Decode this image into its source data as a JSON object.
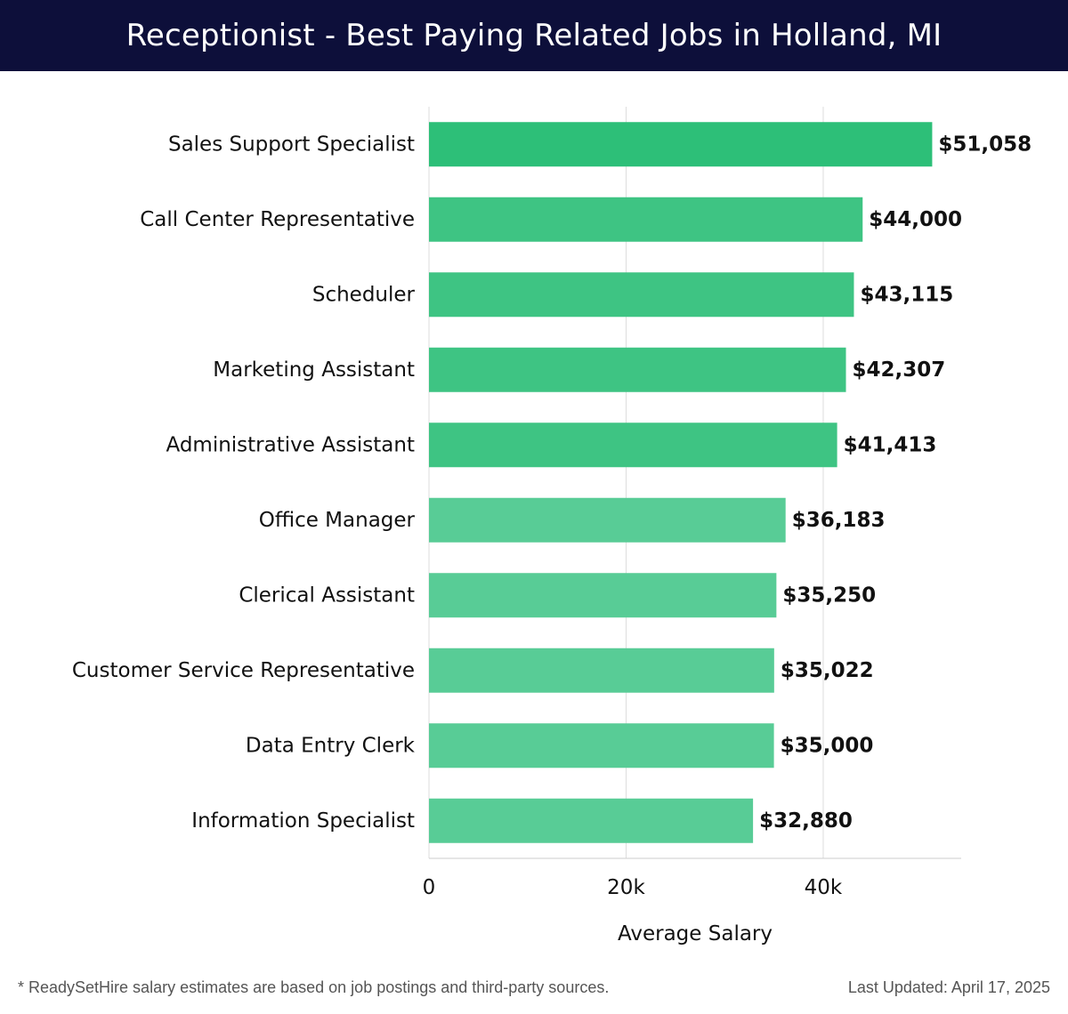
{
  "colors": {
    "header_bg": "#0d0f3a",
    "bar_top": "#2dbf78",
    "bar": "#3ec483",
    "bar_light": "#58cc96",
    "grid": "#dddddd",
    "axis": "#cccccc"
  },
  "footer": {
    "note": "* ReadySetHire salary estimates are based on job postings and third-party sources.",
    "updated": "Last Updated: April 17, 2025"
  },
  "chart_data": {
    "type": "bar",
    "orientation": "horizontal",
    "title": "Receptionist - Best Paying Related Jobs in Holland, MI",
    "xlabel": "Average Salary",
    "ylabel": "",
    "xlim": [
      0,
      54000
    ],
    "xticks": [
      0,
      20000,
      40000
    ],
    "xtick_labels": [
      "0",
      "20k",
      "40k"
    ],
    "grid": true,
    "categories": [
      "Sales Support Specialist",
      "Call Center Representative",
      "Scheduler",
      "Marketing Assistant",
      "Administrative Assistant",
      "Office Manager",
      "Clerical Assistant",
      "Customer Service Representative",
      "Data Entry Clerk",
      "Information Specialist"
    ],
    "values": [
      51058,
      44000,
      43115,
      42307,
      41413,
      36183,
      35250,
      35022,
      35000,
      32880
    ],
    "value_labels": [
      "$51,058",
      "$44,000",
      "$43,115",
      "$42,307",
      "$41,413",
      "$36,183",
      "$35,250",
      "$35,022",
      "$35,000",
      "$32,880"
    ]
  }
}
